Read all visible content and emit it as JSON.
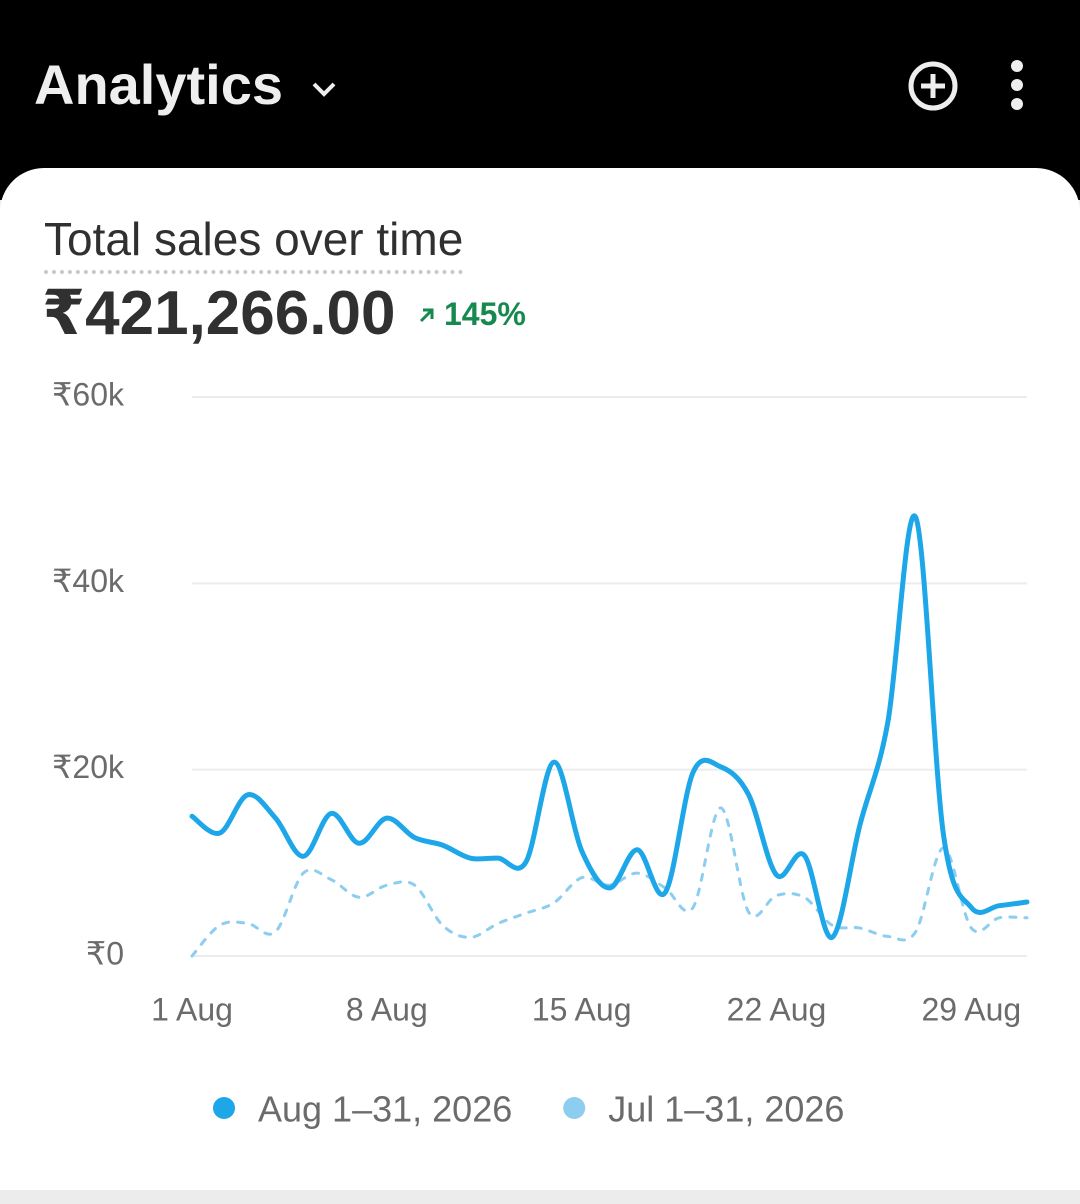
{
  "header": {
    "title": "Analytics"
  },
  "card": {
    "title": "Total sales over time",
    "total": "₹421,266.00",
    "change": "145%"
  },
  "chart_data": {
    "type": "line",
    "categories": [
      "1 Aug",
      null,
      null,
      null,
      null,
      null,
      null,
      "8 Aug",
      null,
      null,
      null,
      null,
      null,
      null,
      "15 Aug",
      null,
      null,
      null,
      null,
      null,
      null,
      "22 Aug",
      null,
      null,
      null,
      null,
      null,
      null,
      "29 Aug",
      null,
      null
    ],
    "series": [
      {
        "name": "Aug 1–31, 2026",
        "color": "#1ea7e8",
        "style": "solid",
        "values": [
          15000,
          13200,
          17300,
          14800,
          10700,
          15300,
          12100,
          14800,
          12700,
          11900,
          10500,
          10500,
          10100,
          20800,
          11300,
          7300,
          11400,
          6800,
          19700,
          20300,
          17300,
          8700,
          10800,
          2000,
          14100,
          25100,
          47100,
          13000,
          5200,
          5400,
          5800
        ]
      },
      {
        "name": "Jul 1–31, 2026",
        "color": "#8ccdf0",
        "style": "dashed",
        "values": [
          0,
          3300,
          3500,
          2600,
          8900,
          8200,
          6300,
          7600,
          7600,
          3300,
          2000,
          3500,
          4600,
          5700,
          8400,
          7600,
          8900,
          7300,
          5200,
          15900,
          4700,
          6500,
          6300,
          3300,
          3000,
          2100,
          2600,
          11600,
          3000,
          4100,
          4100
        ]
      }
    ],
    "ylim": [
      0,
      60000
    ],
    "yticks": [
      {
        "value": 0,
        "label": "₹0"
      },
      {
        "value": 20000,
        "label": "₹20k"
      },
      {
        "value": 40000,
        "label": "₹40k"
      },
      {
        "value": 60000,
        "label": "₹60k"
      }
    ],
    "grid": true
  }
}
